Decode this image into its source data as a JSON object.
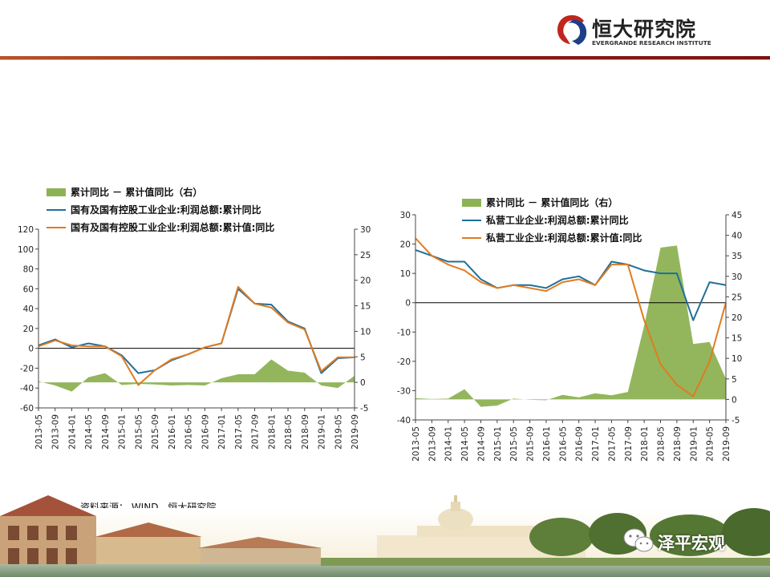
{
  "header": {
    "brand_cn": "恒大研究院",
    "brand_en": "EVERGRANDE RESEARCH INSTITUTE",
    "accent_color": "#8e1c13",
    "logo_icon": "evergrande-logo-icon"
  },
  "source_note": "资料来源： WIND，恒大研究院",
  "watermark": {
    "name": "泽平宏观",
    "icon": "wechat-icon"
  },
  "chart_data": [
    {
      "type": "line",
      "legend": [
        "累计同比 － 累计值同比（右）",
        "国有及国有控股工业企业:利润总额:累计同比",
        "国有及国有控股工业企业:利润总额:累计值:同比"
      ],
      "x": [
        "2013-05",
        "2013-09",
        "2014-01",
        "2014-05",
        "2014-09",
        "2015-01",
        "2015-05",
        "2015-09",
        "2016-01",
        "2016-05",
        "2016-09",
        "2017-01",
        "2017-05",
        "2017-09",
        "2018-01",
        "2018-05",
        "2018-09",
        "2019-01",
        "2019-05",
        "2019-09"
      ],
      "series": [
        {
          "name": "累计同比 － 累计值同比（右）",
          "axis": "right",
          "kind": "area",
          "color": "#8db254",
          "values": [
            0.2,
            -0.6,
            -1.8,
            1.0,
            1.8,
            -0.5,
            -0.3,
            -0.4,
            -0.6,
            -0.5,
            -0.6,
            0.8,
            1.6,
            1.6,
            4.5,
            2.3,
            1.9,
            -0.6,
            -1.1,
            1.3
          ]
        },
        {
          "name": "国有及国有控股工业企业:利润总额:累计同比",
          "axis": "left",
          "kind": "line",
          "color": "#1f6f9a",
          "values": [
            3,
            9,
            1,
            5,
            2,
            -7,
            -25,
            -22,
            -12,
            -6,
            1,
            5,
            60,
            45,
            44,
            27,
            20,
            -25,
            -10,
            -9
          ]
        },
        {
          "name": "国有及国有控股工业企业:利润总额:累计值:同比",
          "axis": "left",
          "kind": "line",
          "color": "#e07b20",
          "values": [
            2,
            8,
            3,
            2,
            2,
            -8,
            -37,
            -22,
            -11,
            -6,
            1,
            5,
            62,
            45,
            41,
            26,
            19,
            -23,
            -9,
            -9
          ]
        }
      ],
      "y_left": {
        "min": -60,
        "max": 120,
        "ticks": [
          -60,
          -40,
          -20,
          0,
          20,
          40,
          60,
          80,
          100,
          120
        ]
      },
      "y_right": {
        "min": -5,
        "max": 30,
        "ticks": [
          -5,
          0,
          5,
          10,
          15,
          20,
          25,
          30
        ]
      }
    },
    {
      "type": "line",
      "legend": [
        "累计同比 － 累计值同比（右）",
        "私营工业企业:利润总额:累计同比",
        "私营工业企业:利润总额:累计值:同比"
      ],
      "x": [
        "2013-05",
        "2013-09",
        "2014-01",
        "2014-05",
        "2014-09",
        "2015-01",
        "2015-05",
        "2015-09",
        "2016-01",
        "2016-05",
        "2016-09",
        "2017-01",
        "2017-05",
        "2017-09",
        "2018-01",
        "2018-05",
        "2018-09",
        "2019-01",
        "2019-05",
        "2019-09"
      ],
      "series": [
        {
          "name": "累计同比 － 累计值同比（右）",
          "axis": "right",
          "kind": "area",
          "color": "#8db254",
          "values": [
            0.3,
            0.1,
            0.2,
            2.5,
            -1.8,
            -1.5,
            0.2,
            -0.1,
            -0.2,
            1.1,
            0.5,
            1.5,
            1.0,
            1.8,
            18.0,
            37.0,
            37.5,
            13.5,
            14.0,
            5.0
          ]
        },
        {
          "name": "私营工业企业:利润总额:累计同比",
          "axis": "left",
          "kind": "line",
          "color": "#1f6f9a",
          "values": [
            18,
            16,
            14,
            14,
            8,
            5,
            6,
            6,
            5,
            8,
            9,
            6,
            14,
            13,
            11,
            10,
            10,
            -6,
            7,
            6
          ]
        },
        {
          "name": "私营工业企业:利润总额:累计值:同比",
          "axis": "left",
          "kind": "line",
          "color": "#e07b20",
          "values": [
            22,
            16,
            13,
            11,
            7,
            5,
            6,
            5,
            4,
            7,
            8,
            6,
            13,
            13,
            -6,
            -21,
            -28,
            -32,
            -20,
            0
          ]
        }
      ],
      "y_left": {
        "min": -40,
        "max": 30,
        "ticks": [
          -40,
          -30,
          -20,
          -10,
          0,
          10,
          20,
          30
        ]
      },
      "y_right": {
        "min": -5,
        "max": 45,
        "ticks": [
          -5,
          0,
          5,
          10,
          15,
          20,
          25,
          30,
          35,
          40,
          45
        ]
      }
    }
  ]
}
